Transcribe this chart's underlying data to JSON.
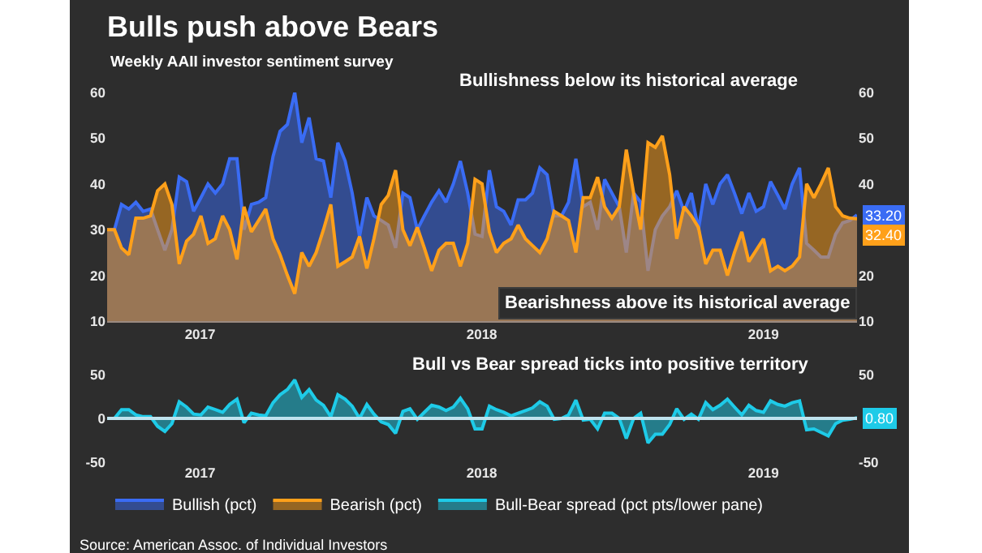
{
  "chart_data": [
    {
      "type": "area",
      "title": "Bulls push above Bears",
      "subtitle": "Weekly AAII investor sentiment survey",
      "annotations": [
        "Bullishness below its historical average",
        "Bearishness above its historical average"
      ],
      "x": [
        2016.67,
        2016.696,
        2016.721,
        2016.747,
        2016.772,
        2016.798,
        2016.824,
        2016.849,
        2016.875,
        2016.9,
        2016.926,
        2016.952,
        2016.977,
        2017.003,
        2017.028,
        2017.054,
        2017.08,
        2017.105,
        2017.131,
        2017.156,
        2017.182,
        2017.208,
        2017.233,
        2017.259,
        2017.284,
        2017.31,
        2017.336,
        2017.361,
        2017.387,
        2017.412,
        2017.438,
        2017.464,
        2017.489,
        2017.515,
        2017.54,
        2017.566,
        2017.592,
        2017.617,
        2017.643,
        2017.668,
        2017.694,
        2017.72,
        2017.745,
        2017.771,
        2017.796,
        2017.822,
        2017.848,
        2017.873,
        2017.899,
        2017.924,
        2017.95,
        2017.976,
        2018.001,
        2018.027,
        2018.052,
        2018.078,
        2018.104,
        2018.129,
        2018.155,
        2018.18,
        2018.206,
        2018.232,
        2018.257,
        2018.283,
        2018.308,
        2018.334,
        2018.36,
        2018.385,
        2018.411,
        2018.436,
        2018.462,
        2018.488,
        2018.513,
        2018.539,
        2018.564,
        2018.59,
        2018.616,
        2018.641,
        2018.667,
        2018.692,
        2018.718,
        2018.744,
        2018.769,
        2018.795,
        2018.82,
        2018.846,
        2018.872,
        2018.897,
        2018.923,
        2018.948,
        2018.974,
        2019.0,
        2019.025,
        2019.051,
        2019.076,
        2019.102,
        2019.128,
        2019.153,
        2019.179,
        2019.204,
        2019.23,
        2019.256,
        2019.281,
        2019.307,
        2019.332
      ],
      "xlim": [
        2016.67,
        2019.332
      ],
      "xticks": [
        2017,
        2018,
        2019
      ],
      "ylim": [
        10,
        60
      ],
      "yticks": [
        10,
        20,
        30,
        40,
        50,
        60
      ],
      "y2lim": [
        10,
        60
      ],
      "y2ticks": [
        10,
        20,
        40,
        50,
        60
      ],
      "legend": "bottom",
      "series": [
        {
          "name": "Bullish (pct)",
          "color": "#3a6cf4",
          "values": [
            30,
            30,
            35.5,
            34.5,
            36,
            34,
            34.5,
            30,
            25.5,
            30,
            41.5,
            40.5,
            34,
            37,
            40,
            38,
            40,
            45.5,
            45.5,
            30,
            35.5,
            36,
            37,
            46,
            51.5,
            53,
            60,
            49,
            54.5,
            45.5,
            45,
            37,
            49,
            45,
            38,
            28.5,
            37,
            33,
            32,
            31,
            26,
            38,
            37,
            30,
            33,
            36,
            38.5,
            36,
            40,
            45,
            38,
            29,
            28.5,
            43,
            35,
            34,
            31,
            36.5,
            36.5,
            38,
            43.5,
            42,
            33,
            33,
            36,
            45.5,
            35,
            36,
            30,
            41,
            38,
            35,
            25,
            38,
            36,
            21,
            30,
            33,
            35,
            38.5,
            34,
            38,
            30,
            40,
            35.5,
            40,
            42,
            38,
            33.5,
            38,
            34,
            35,
            40.5,
            37.5,
            34.5,
            40,
            43.5,
            27,
            25.5,
            24,
            24,
            29,
            31.5,
            32,
            33.2
          ],
          "value_labels": [
            null,
            null,
            null,
            null,
            null,
            null,
            null,
            null,
            null,
            null,
            null,
            null,
            null,
            null,
            null,
            null,
            null,
            null,
            null,
            null,
            null,
            null,
            null,
            null,
            null,
            null,
            null,
            null,
            null,
            null,
            null,
            null,
            null,
            null,
            null,
            null,
            null,
            null,
            null,
            null,
            null,
            null,
            null,
            null,
            null,
            null,
            null,
            null,
            null,
            null,
            null,
            null,
            null,
            null,
            null,
            null,
            null,
            null,
            null,
            null,
            null,
            null,
            null,
            null,
            null,
            null,
            null,
            null,
            null,
            null,
            null,
            null,
            null,
            null,
            null,
            null,
            null,
            null,
            null,
            null,
            null,
            null,
            null,
            null,
            null,
            null,
            null,
            null,
            null,
            null,
            null,
            null,
            null,
            null,
            null,
            null,
            null,
            null,
            null,
            null,
            null,
            null,
            null,
            null,
            "33.20"
          ]
        },
        {
          "name": "Bearish (pct)",
          "color": "#ffa01a",
          "values": [
            30,
            30,
            26,
            24.5,
            32.5,
            32.5,
            33,
            38.5,
            40,
            35.5,
            22.5,
            27.5,
            29,
            33,
            27,
            28,
            33,
            30,
            23.5,
            35,
            29.5,
            32,
            34.5,
            28,
            24.5,
            20,
            16,
            25,
            22,
            25,
            30,
            35.5,
            22,
            23,
            24,
            28.5,
            21.5,
            28,
            35.5,
            37.5,
            43,
            30,
            26.5,
            30.5,
            26,
            21,
            25.5,
            27,
            27,
            22,
            27,
            41,
            40,
            29.5,
            25,
            27,
            28,
            31,
            28,
            26.5,
            25,
            28,
            34,
            33,
            32,
            25,
            37,
            37,
            41.5,
            35,
            32.5,
            35,
            47.5,
            38,
            30,
            49,
            48,
            50.5,
            42,
            28,
            35,
            33,
            30.5,
            22.5,
            25.5,
            25.5,
            20,
            25,
            29.5,
            23,
            25.5,
            28,
            21,
            22,
            21,
            22,
            24,
            40,
            37,
            40,
            43.5,
            35,
            33,
            32.5,
            32.4
          ],
          "value_labels": [
            null,
            null,
            null,
            null,
            null,
            null,
            null,
            null,
            null,
            null,
            null,
            null,
            null,
            null,
            null,
            null,
            null,
            null,
            null,
            null,
            null,
            null,
            null,
            null,
            null,
            null,
            null,
            null,
            null,
            null,
            null,
            null,
            null,
            null,
            null,
            null,
            null,
            null,
            null,
            null,
            null,
            null,
            null,
            null,
            null,
            null,
            null,
            null,
            null,
            null,
            null,
            null,
            null,
            null,
            null,
            null,
            null,
            null,
            null,
            null,
            null,
            null,
            null,
            null,
            null,
            null,
            null,
            null,
            null,
            null,
            null,
            null,
            null,
            null,
            null,
            null,
            null,
            null,
            null,
            null,
            null,
            null,
            null,
            null,
            null,
            null,
            null,
            null,
            null,
            null,
            null,
            null,
            null,
            null,
            null,
            null,
            null,
            null,
            null,
            null,
            null,
            null,
            null,
            null,
            "32.40"
          ]
        }
      ]
    },
    {
      "type": "area",
      "annotations": [
        "Bull vs Bear spread ticks into positive territory",
        "Source: American Assoc. of Individual Investors"
      ],
      "x": [
        2016.67,
        2016.696,
        2016.721,
        2016.747,
        2016.772,
        2016.798,
        2016.824,
        2016.849,
        2016.875,
        2016.9,
        2016.926,
        2016.952,
        2016.977,
        2017.003,
        2017.028,
        2017.054,
        2017.08,
        2017.105,
        2017.131,
        2017.156,
        2017.182,
        2017.208,
        2017.233,
        2017.259,
        2017.284,
        2017.31,
        2017.336,
        2017.361,
        2017.387,
        2017.412,
        2017.438,
        2017.464,
        2017.489,
        2017.515,
        2017.54,
        2017.566,
        2017.592,
        2017.617,
        2017.643,
        2017.668,
        2017.694,
        2017.72,
        2017.745,
        2017.771,
        2017.796,
        2017.822,
        2017.848,
        2017.873,
        2017.899,
        2017.924,
        2017.95,
        2017.976,
        2018.001,
        2018.027,
        2018.052,
        2018.078,
        2018.104,
        2018.129,
        2018.155,
        2018.18,
        2018.206,
        2018.232,
        2018.257,
        2018.283,
        2018.308,
        2018.334,
        2018.36,
        2018.385,
        2018.411,
        2018.436,
        2018.462,
        2018.488,
        2018.513,
        2018.539,
        2018.564,
        2018.59,
        2018.616,
        2018.641,
        2018.667,
        2018.692,
        2018.718,
        2018.744,
        2018.769,
        2018.795,
        2018.82,
        2018.846,
        2018.872,
        2018.897,
        2018.923,
        2018.948,
        2018.974,
        2019.0,
        2019.025,
        2019.051,
        2019.076,
        2019.102,
        2019.128,
        2019.153,
        2019.179,
        2019.204,
        2019.23,
        2019.256,
        2019.281,
        2019.307,
        2019.332
      ],
      "xlim": [
        2016.67,
        2019.332
      ],
      "xticks": [
        2017,
        2018,
        2019
      ],
      "ylim": [
        -50,
        50
      ],
      "yticks": [
        -50,
        0,
        50
      ],
      "y2lim": [
        -50,
        50
      ],
      "y2ticks": [
        -50,
        50
      ],
      "legend": "bottom",
      "ref_lines": [
        {
          "axis": "y",
          "value": 0,
          "color": "#bfe3ee"
        }
      ],
      "series": [
        {
          "name": "Bull-Bear spread (pct pts/lower pane)",
          "color": "#1ecbe8",
          "values": [
            0,
            0,
            10,
            10,
            4,
            2,
            2,
            -9,
            -15,
            -6,
            19,
            13,
            5,
            4,
            13,
            10,
            7,
            16,
            22,
            -5,
            6,
            4,
            3,
            18,
            27,
            33,
            44,
            24,
            33,
            21,
            15,
            2,
            27,
            22,
            14,
            0,
            16,
            5,
            -4,
            -7,
            -17,
            8,
            11,
            -1,
            7,
            15,
            13,
            9,
            13,
            23,
            11,
            -12,
            -12,
            14,
            10,
            7,
            3,
            6,
            9,
            12,
            19,
            14,
            -1,
            0,
            4,
            21,
            -2,
            -1,
            -12,
            6,
            6,
            0,
            -23,
            0,
            6,
            -28,
            -18,
            -18,
            -7,
            11,
            -1,
            5,
            -1,
            18,
            10,
            15,
            22,
            13,
            4,
            15,
            9,
            7,
            20,
            16,
            14,
            18,
            20,
            -13,
            -12,
            -16,
            -20,
            -6,
            -2,
            -1,
            0.8
          ],
          "value_labels": [
            null,
            null,
            null,
            null,
            null,
            null,
            null,
            null,
            null,
            null,
            null,
            null,
            null,
            null,
            null,
            null,
            null,
            null,
            null,
            null,
            null,
            null,
            null,
            null,
            null,
            null,
            null,
            null,
            null,
            null,
            null,
            null,
            null,
            null,
            null,
            null,
            null,
            null,
            null,
            null,
            null,
            null,
            null,
            null,
            null,
            null,
            null,
            null,
            null,
            null,
            null,
            null,
            null,
            null,
            null,
            null,
            null,
            null,
            null,
            null,
            null,
            null,
            null,
            null,
            null,
            null,
            null,
            null,
            null,
            null,
            null,
            null,
            null,
            null,
            null,
            null,
            null,
            null,
            null,
            null,
            null,
            null,
            null,
            null,
            null,
            null,
            null,
            null,
            null,
            null,
            null,
            null,
            null,
            null,
            null,
            null,
            null,
            null,
            null,
            null,
            null,
            null,
            null,
            null,
            "0.80"
          ]
        }
      ]
    }
  ]
}
